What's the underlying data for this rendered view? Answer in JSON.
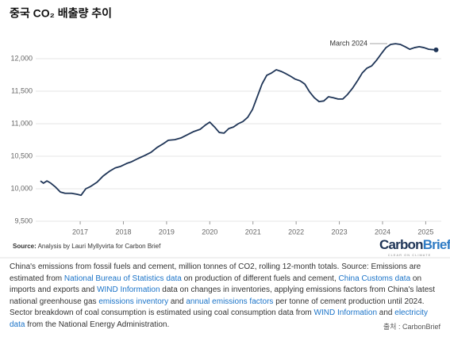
{
  "title": "중국 CO₂ 배출량 추이",
  "chart_data": {
    "type": "line",
    "color": "#1f3557",
    "annotation": "March 2024",
    "x": [
      2016.08,
      2016.15,
      2016.23,
      2016.32,
      2016.43,
      2016.54,
      2016.65,
      2016.8,
      2016.93,
      2017.02,
      2017.13,
      2017.24,
      2017.39,
      2017.53,
      2017.68,
      2017.81,
      2017.94,
      2018.08,
      2018.19,
      2018.34,
      2018.49,
      2018.64,
      2018.78,
      2018.93,
      2019.04,
      2019.19,
      2019.33,
      2019.48,
      2019.63,
      2019.78,
      2019.89,
      2020.0,
      2020.11,
      2020.22,
      2020.33,
      2020.44,
      2020.55,
      2020.66,
      2020.77,
      2020.88,
      2020.99,
      2021.1,
      2021.21,
      2021.32,
      2021.43,
      2021.54,
      2021.65,
      2021.76,
      2021.87,
      2021.98,
      2022.09,
      2022.2,
      2022.31,
      2022.42,
      2022.53,
      2022.64,
      2022.75,
      2022.86,
      2022.97,
      2023.08,
      2023.19,
      2023.31,
      2023.42,
      2023.53,
      2023.64,
      2023.75,
      2023.86,
      2023.97,
      2024.08,
      2024.19,
      2024.3,
      2024.41,
      2024.52,
      2024.63,
      2024.74,
      2024.85,
      2024.96,
      2025.07,
      2025.24
    ],
    "values": [
      10120,
      10085,
      10120,
      10085,
      10025,
      9950,
      9930,
      9930,
      9915,
      9900,
      10000,
      10035,
      10100,
      10195,
      10270,
      10320,
      10345,
      10390,
      10415,
      10465,
      10510,
      10560,
      10635,
      10695,
      10745,
      10755,
      10780,
      10830,
      10880,
      10915,
      10975,
      11025,
      10950,
      10865,
      10855,
      10925,
      10950,
      11000,
      11035,
      11100,
      11220,
      11415,
      11610,
      11745,
      11780,
      11830,
      11805,
      11770,
      11730,
      11685,
      11660,
      11610,
      11490,
      11400,
      11340,
      11350,
      11415,
      11400,
      11380,
      11380,
      11450,
      11550,
      11660,
      11780,
      11855,
      11890,
      11975,
      12075,
      12170,
      12220,
      12230,
      12220,
      12185,
      12145,
      12170,
      12185,
      12170,
      12145,
      12135
    ],
    "xlim": [
      2015.97,
      2025.36
    ],
    "xticks": [
      2017,
      2018,
      2019,
      2020,
      2021,
      2022,
      2023,
      2024,
      2025
    ],
    "ylim": [
      9500,
      12300
    ],
    "yticks": [
      {
        "value": 9500,
        "label": "9,500"
      },
      {
        "value": 10000,
        "label": "10,000"
      },
      {
        "value": 10500,
        "label": "10,500"
      },
      {
        "value": 11000,
        "label": "11,000"
      },
      {
        "value": 11500,
        "label": "11,500"
      },
      {
        "value": 12000,
        "label": "12,000"
      }
    ],
    "grid": true
  },
  "source": {
    "label": "Source:",
    "text": "Analysis by Lauri Myllyvirta for Carbon Brief"
  },
  "logo": {
    "parts": [
      "Carbon",
      "Brief"
    ],
    "tagline": "CLEAR ON CLIMATE"
  },
  "caption": [
    {
      "text": "China's emissions from fossil fuels and cement, million tonnes of CO2, rolling 12-month totals. Source: Emissions are estimated from ",
      "link": false
    },
    {
      "text": "National Bureau of Statistics data",
      "link": true
    },
    {
      "text": " on production of different fuels and cement, ",
      "link": false
    },
    {
      "text": "China Customs data",
      "link": true
    },
    {
      "text": " on imports and exports and ",
      "link": false
    },
    {
      "text": "WIND Information",
      "link": true
    },
    {
      "text": " data on changes in inventories, applying emissions factors from China's latest national greenhouse gas ",
      "link": false
    },
    {
      "text": "emissions inventory",
      "link": true
    },
    {
      "text": " and ",
      "link": false
    },
    {
      "text": "annual emissions factors",
      "link": true
    },
    {
      "text": " per tonne of cement production until 2024. Sector breakdown of coal consumption is estimated using coal consumption data from ",
      "link": false
    },
    {
      "text": "WIND Information",
      "link": true
    },
    {
      "text": " and ",
      "link": false
    },
    {
      "text": "electricity data",
      "link": true
    },
    {
      "text": " from the National Energy Administration.",
      "link": false
    }
  ],
  "credit": "출처 : CarbonBrief"
}
